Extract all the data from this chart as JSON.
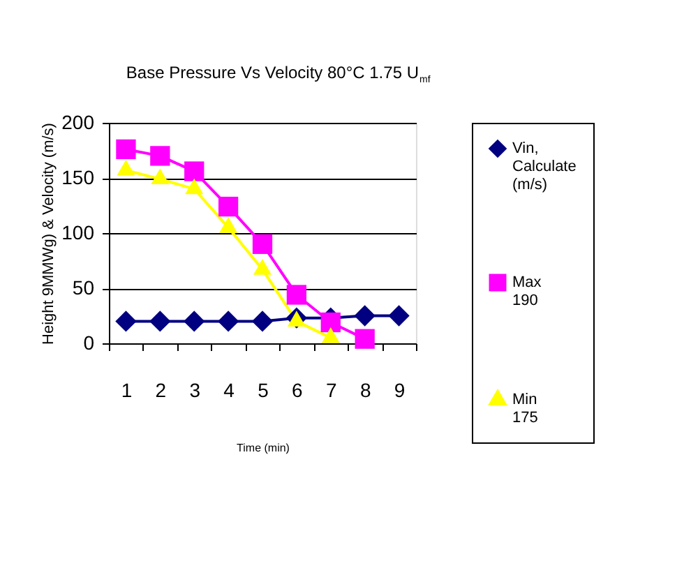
{
  "chart_data": {
    "type": "line",
    "title": "Base Pressure Vs Velocity 80°C 1.75 U$_{mf}$",
    "xlabel": "Time (min)",
    "ylabel": "Height 9MMWg) & Velocity (m/s)",
    "categories": [
      "1",
      "2",
      "3",
      "4",
      "5",
      "6",
      "7",
      "8",
      "9"
    ],
    "series": [
      {
        "name": "Vin, Calculate (m/s)",
        "color": "#000080",
        "marker": "diamond",
        "values": [
          20,
          20,
          20,
          20,
          20,
          23,
          23,
          25,
          25
        ]
      },
      {
        "name": "Max 190",
        "color": "#ff00ff",
        "marker": "square",
        "values": [
          176,
          170,
          156,
          124,
          90,
          44,
          19,
          4,
          null
        ]
      },
      {
        "name": "Min 175",
        "color": "#ffff00",
        "marker": "triangle",
        "values": [
          157,
          149,
          140,
          105,
          67,
          20,
          5,
          null,
          null
        ]
      }
    ],
    "ylim": [
      0,
      200
    ],
    "yticks": [
      0,
      50,
      100,
      150,
      200
    ],
    "grid": "y",
    "legend": "right",
    "line_style": "solid"
  }
}
